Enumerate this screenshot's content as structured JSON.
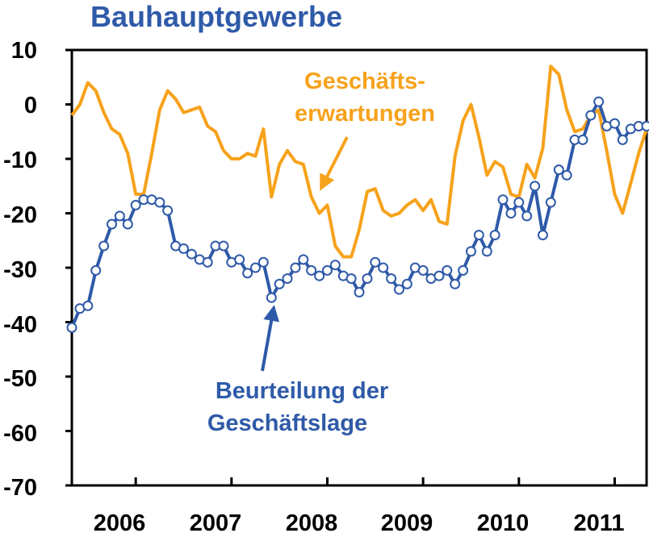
{
  "chart_data": {
    "type": "line",
    "title": "Bauhauptgewerbe",
    "ylim": [
      -70,
      10
    ],
    "yticks": [
      10,
      0,
      -10,
      -20,
      -30,
      -40,
      -50,
      -60,
      -70
    ],
    "x_range": [
      2005.333,
      2011.333
    ],
    "year_labels": [
      "2006",
      "2007",
      "2008",
      "2009",
      "2010",
      "2011"
    ],
    "grid": false,
    "colors": {
      "expectations": "#f7a21b",
      "situation": "#2f5aa8",
      "title": "#2f5aa8",
      "marker_fill": "#ffffff"
    },
    "series": [
      {
        "key": "expectations",
        "annotation": [
          "Geschäfts-",
          "erwartungen"
        ],
        "markers": false,
        "x": [
          2005.333,
          2005.417,
          2005.5,
          2005.583,
          2005.667,
          2005.75,
          2005.833,
          2005.917,
          2006.0,
          2006.083,
          2006.167,
          2006.25,
          2006.333,
          2006.417,
          2006.5,
          2006.583,
          2006.667,
          2006.75,
          2006.833,
          2006.917,
          2007.0,
          2007.083,
          2007.167,
          2007.25,
          2007.333,
          2007.417,
          2007.5,
          2007.583,
          2007.667,
          2007.75,
          2007.833,
          2007.917,
          2008.0,
          2008.083,
          2008.167,
          2008.25,
          2008.333,
          2008.417,
          2008.5,
          2008.583,
          2008.667,
          2008.75,
          2008.833,
          2008.917,
          2009.0,
          2009.083,
          2009.167,
          2009.25,
          2009.333,
          2009.417,
          2009.5,
          2009.583,
          2009.667,
          2009.75,
          2009.833,
          2009.917,
          2010.0,
          2010.083,
          2010.167,
          2010.25,
          2010.333,
          2010.417,
          2010.5,
          2010.583,
          2010.667,
          2010.75,
          2010.833,
          2010.917,
          2011.0,
          2011.083,
          2011.167,
          2011.25,
          2011.333
        ],
        "values": [
          -2,
          0,
          4,
          2.5,
          -1.5,
          -4.5,
          -5.5,
          -9,
          -16.5,
          -16.5,
          -9,
          -1,
          2.5,
          1,
          -1.5,
          -1,
          -0.5,
          -4,
          -5,
          -8.5,
          -10,
          -10,
          -9,
          -9.5,
          -4.5,
          -17,
          -11,
          -8.5,
          -10.5,
          -11,
          -17,
          -20,
          -18.5,
          -26,
          -28,
          -28,
          -23,
          -16,
          -15.5,
          -19.5,
          -20.5,
          -20,
          -18.5,
          -17.5,
          -19.5,
          -17.5,
          -21.5,
          -22,
          -9.5,
          -3,
          0,
          -6,
          -13,
          -10.5,
          -11.5,
          -16.5,
          -17,
          -11,
          -13.5,
          -8,
          7,
          5.5,
          -1,
          -5,
          -4.5,
          -2,
          -1,
          -8.5,
          -16.5,
          -20,
          -14.5,
          -9,
          -4.5
        ]
      },
      {
        "key": "situation",
        "annotation": [
          "Beurteilung der",
          "Geschäftslage"
        ],
        "markers": true,
        "x": [
          2005.333,
          2005.417,
          2005.5,
          2005.583,
          2005.667,
          2005.75,
          2005.833,
          2005.917,
          2006.0,
          2006.083,
          2006.167,
          2006.25,
          2006.333,
          2006.417,
          2006.5,
          2006.583,
          2006.667,
          2006.75,
          2006.833,
          2006.917,
          2007.0,
          2007.083,
          2007.167,
          2007.25,
          2007.333,
          2007.417,
          2007.5,
          2007.583,
          2007.667,
          2007.75,
          2007.833,
          2007.917,
          2008.0,
          2008.083,
          2008.167,
          2008.25,
          2008.333,
          2008.417,
          2008.5,
          2008.583,
          2008.667,
          2008.75,
          2008.833,
          2008.917,
          2009.0,
          2009.083,
          2009.167,
          2009.25,
          2009.333,
          2009.417,
          2009.5,
          2009.583,
          2009.667,
          2009.75,
          2009.833,
          2009.917,
          2010.0,
          2010.083,
          2010.167,
          2010.25,
          2010.333,
          2010.417,
          2010.5,
          2010.583,
          2010.667,
          2010.75,
          2010.833,
          2010.917,
          2011.0,
          2011.083,
          2011.167,
          2011.25,
          2011.333
        ],
        "values": [
          -41,
          -37.5,
          -37,
          -30.5,
          -26,
          -22,
          -20.5,
          -22,
          -18.5,
          -17.5,
          -17.5,
          -18,
          -19.5,
          -26,
          -26.5,
          -27.5,
          -28.5,
          -29,
          -26,
          -26,
          -29,
          -28.5,
          -31,
          -30,
          -29,
          -35.5,
          -33,
          -32,
          -30,
          -28.5,
          -30.5,
          -31.5,
          -30.5,
          -29.5,
          -31.5,
          -32,
          -34.5,
          -32,
          -29,
          -30,
          -32,
          -34,
          -33,
          -30,
          -30.5,
          -32,
          -31.5,
          -30.5,
          -33,
          -30.5,
          -27,
          -24,
          -27,
          -24,
          -17.5,
          -20,
          -18,
          -20.5,
          -15,
          -24,
          -18,
          -12,
          -13,
          -6.5,
          -6.5,
          -2,
          0.5,
          -4,
          -3.5,
          -6.5,
          -4.5,
          -4,
          -4
        ]
      }
    ]
  }
}
